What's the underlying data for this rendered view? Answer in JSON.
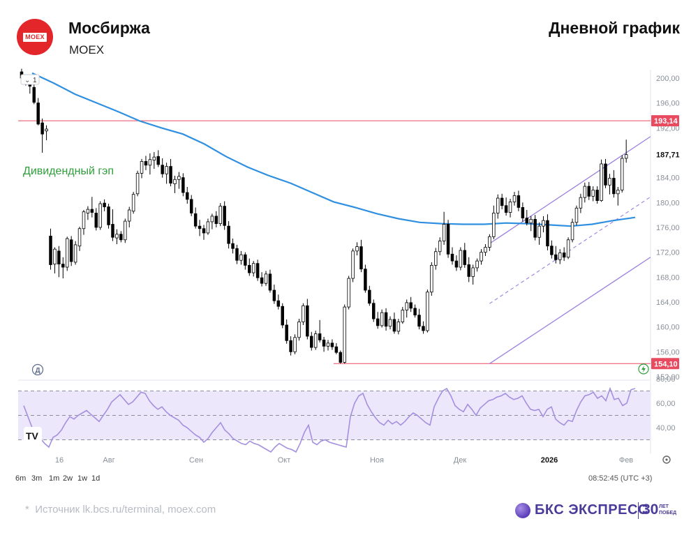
{
  "header": {
    "company": "Мосбиржа",
    "ticker": "MOEX",
    "chart_kind": "Дневной график",
    "logo_text": "MOEX"
  },
  "footer": {
    "source": "Источник lk.bcs.ru/terminal, moex.com",
    "brand": "БКС ЭКСПРЕСС",
    "brand_years": "30",
    "brand_years_line1": "ЛЕТ",
    "brand_years_line2": "ПОБЕД"
  },
  "toolbar": {
    "timeframes": [
      "6m",
      "3m",
      "1m",
      "2w",
      "1w",
      "1d"
    ],
    "clock": "08:52:45 (UTC +3)",
    "pane_badge": "1"
  },
  "colors": {
    "up": "#ffffff",
    "down": "#000000",
    "ma": "#2f8fe0",
    "channel": "#9b7fe0",
    "level": "#e84a5f",
    "rsi_line": "#a58fdf",
    "rsi_fill": "#ede7fb",
    "annotation": "#2e9e3a"
  },
  "chart_data": [
    {
      "type": "candlestick",
      "title": "Дневной график",
      "annotations": [
        {
          "text": "Дивидендный гэп",
          "color": "#2e9e3a"
        }
      ],
      "y_ticks": [
        "200,00",
        "196,00",
        "192,00",
        "187,71",
        "184,00",
        "180,00",
        "176,00",
        "172,00",
        "168,00",
        "164,00",
        "160,00",
        "156,00",
        "152,00"
      ],
      "ylim": [
        152,
        201
      ],
      "x_ticks": [
        "16",
        "Авг",
        "Сен",
        "Окт",
        "Ноя",
        "Дек",
        "2026",
        "Фев"
      ],
      "levels": [
        {
          "name": "resistance",
          "value": 193.14,
          "label": "193,14"
        },
        {
          "name": "support",
          "value": 154.1,
          "label": "154,10"
        }
      ],
      "last_price": {
        "value": 187.71,
        "label": "187,71"
      },
      "channel": {
        "start": {
          "index": 112,
          "value": 154.1
        },
        "end": {
          "index": 225,
          "value": 189.5
        },
        "upper_start_value": 173.4,
        "upper_end_value": 190.6,
        "lower_end_value": 171.2
      },
      "moving_average": [
        200.8,
        199.2,
        197.4,
        196.0,
        194.6,
        193.1,
        192.0,
        191.0,
        189.4,
        187.4,
        185.7,
        184.3,
        183.1,
        181.6,
        180.1,
        179.2,
        178.2,
        177.4,
        176.8,
        176.6,
        176.5,
        176.5,
        176.7,
        176.6,
        176.4,
        176.2,
        176.5,
        177.1,
        177.6
      ],
      "ohlc": [
        [
          201.0,
          201.5,
          199.5,
          200.0
        ],
        [
          200.2,
          200.5,
          198.8,
          199.2
        ],
        [
          199.0,
          199.6,
          197.5,
          198.7
        ],
        [
          198.5,
          199.2,
          195.8,
          196.1
        ],
        [
          196.0,
          196.8,
          192.4,
          192.6
        ],
        [
          192.8,
          193.5,
          188.0,
          191.0
        ],
        [
          191.5,
          192.4,
          190.0,
          191.8
        ],
        [
          174.6,
          175.8,
          169.2,
          170.0
        ],
        [
          170.1,
          172.8,
          168.6,
          172.5
        ],
        [
          172.2,
          173.0,
          168.0,
          170.1
        ],
        [
          170.1,
          171.2,
          167.8,
          169.6
        ],
        [
          169.6,
          174.5,
          169.0,
          174.2
        ],
        [
          174.0,
          174.6,
          169.8,
          170.5
        ],
        [
          170.4,
          173.8,
          170.0,
          173.2
        ],
        [
          173.0,
          176.1,
          172.2,
          175.8
        ],
        [
          175.8,
          178.8,
          174.8,
          178.5
        ],
        [
          178.3,
          179.4,
          177.2,
          178.9
        ],
        [
          178.9,
          180.9,
          177.6,
          178.4
        ],
        [
          178.3,
          179.1,
          175.5,
          176.0
        ],
        [
          176.0,
          180.2,
          175.6,
          179.8
        ],
        [
          179.9,
          180.5,
          178.6,
          179.3
        ],
        [
          179.3,
          179.8,
          175.8,
          176.4
        ],
        [
          176.5,
          178.9,
          173.8,
          174.4
        ],
        [
          174.3,
          175.7,
          173.3,
          174.9
        ],
        [
          174.9,
          175.4,
          173.6,
          174.0
        ],
        [
          174.0,
          177.4,
          173.5,
          177.0
        ],
        [
          177.0,
          179.3,
          176.0,
          178.8
        ],
        [
          178.6,
          181.7,
          178.2,
          181.3
        ],
        [
          181.4,
          185.1,
          181.0,
          184.7
        ],
        [
          184.7,
          187.0,
          183.9,
          186.6
        ],
        [
          186.6,
          187.5,
          185.2,
          186.0
        ],
        [
          186.0,
          187.9,
          184.5,
          186.9
        ],
        [
          186.8,
          188.1,
          185.4,
          187.3
        ],
        [
          187.4,
          188.4,
          185.7,
          186.1
        ],
        [
          186.0,
          187.1,
          184.0,
          184.6
        ],
        [
          184.6,
          186.4,
          183.0,
          185.8
        ],
        [
          185.8,
          187.0,
          182.6,
          183.1
        ],
        [
          183.0,
          184.3,
          181.5,
          183.7
        ],
        [
          183.7,
          184.9,
          182.2,
          184.2
        ],
        [
          184.0,
          184.7,
          181.0,
          181.6
        ],
        [
          181.6,
          182.5,
          179.8,
          180.5
        ],
        [
          180.5,
          181.2,
          177.8,
          178.3
        ],
        [
          178.2,
          179.2,
          175.8,
          176.2
        ],
        [
          176.2,
          177.2,
          174.6,
          175.8
        ],
        [
          175.8,
          176.4,
          174.0,
          175.1
        ],
        [
          175.1,
          177.4,
          174.8,
          176.9
        ],
        [
          176.9,
          178.2,
          175.7,
          177.8
        ],
        [
          177.8,
          178.6,
          176.0,
          176.6
        ],
        [
          176.6,
          179.9,
          176.2,
          179.4
        ],
        [
          179.4,
          180.2,
          175.6,
          176.3
        ],
        [
          176.2,
          177.0,
          172.6,
          173.4
        ],
        [
          173.4,
          174.2,
          171.8,
          172.6
        ],
        [
          172.6,
          173.2,
          170.1,
          170.7
        ],
        [
          170.7,
          172.2,
          170.0,
          171.6
        ],
        [
          171.6,
          172.0,
          169.2,
          169.9
        ],
        [
          169.9,
          171.0,
          168.2,
          168.7
        ],
        [
          168.7,
          170.6,
          168.1,
          170.2
        ],
        [
          170.2,
          170.8,
          167.4,
          167.9
        ],
        [
          167.9,
          168.8,
          166.5,
          167.0
        ],
        [
          167.0,
          169.0,
          166.6,
          168.5
        ],
        [
          168.5,
          169.2,
          165.5,
          165.9
        ],
        [
          165.9,
          166.8,
          163.7,
          164.2
        ],
        [
          164.2,
          165.2,
          162.8,
          163.3
        ],
        [
          163.3,
          163.8,
          159.8,
          160.3
        ],
        [
          160.3,
          161.2,
          157.3,
          157.8
        ],
        [
          157.8,
          158.5,
          155.4,
          156.0
        ],
        [
          156.0,
          158.8,
          155.6,
          158.3
        ],
        [
          158.3,
          161.3,
          157.8,
          160.8
        ],
        [
          160.8,
          163.8,
          160.3,
          163.4
        ],
        [
          163.4,
          164.5,
          158.0,
          158.5
        ],
        [
          158.5,
          159.2,
          156.2,
          156.7
        ],
        [
          156.7,
          159.4,
          156.3,
          158.9
        ],
        [
          158.9,
          161.1,
          157.5,
          157.9
        ],
        [
          157.9,
          158.4,
          156.0,
          156.9
        ],
        [
          156.9,
          157.9,
          156.2,
          157.4
        ],
        [
          157.4,
          158.0,
          156.3,
          156.8
        ],
        [
          156.8,
          157.4,
          155.6,
          155.9
        ],
        [
          155.9,
          156.2,
          154.1,
          154.3
        ],
        [
          154.3,
          163.6,
          154.1,
          163.2
        ],
        [
          163.2,
          168.2,
          162.8,
          167.8
        ],
        [
          167.8,
          172.6,
          167.2,
          172.2
        ],
        [
          172.2,
          173.6,
          171.5,
          172.9
        ],
        [
          172.9,
          174.0,
          168.8,
          169.3
        ],
        [
          169.3,
          170.0,
          165.5,
          165.9
        ],
        [
          165.9,
          166.6,
          163.4,
          163.8
        ],
        [
          163.8,
          164.4,
          160.8,
          161.3
        ],
        [
          161.3,
          162.4,
          159.7,
          160.2
        ],
        [
          160.2,
          162.8,
          159.9,
          162.3
        ],
        [
          162.3,
          163.0,
          159.4,
          160.1
        ],
        [
          160.1,
          161.7,
          159.6,
          161.2
        ],
        [
          161.2,
          162.3,
          158.9,
          159.3
        ],
        [
          159.3,
          161.3,
          158.8,
          160.8
        ],
        [
          160.8,
          163.2,
          160.5,
          162.7
        ],
        [
          162.7,
          164.4,
          161.5,
          163.9
        ],
        [
          163.9,
          164.8,
          162.4,
          163.0
        ],
        [
          163.0,
          163.6,
          161.5,
          161.9
        ],
        [
          161.9,
          162.9,
          159.6,
          160.1
        ],
        [
          160.1,
          160.9,
          158.9,
          159.4
        ],
        [
          159.4,
          166.0,
          159.1,
          165.6
        ],
        [
          165.6,
          170.4,
          165.0,
          169.9
        ],
        [
          169.9,
          172.7,
          169.2,
          172.1
        ],
        [
          172.1,
          174.4,
          171.5,
          173.8
        ],
        [
          173.8,
          178.5,
          173.2,
          176.5
        ],
        [
          176.5,
          177.2,
          171.1,
          171.7
        ],
        [
          171.7,
          172.8,
          170.0,
          170.6
        ],
        [
          170.6,
          171.5,
          169.0,
          169.6
        ],
        [
          169.6,
          172.8,
          169.1,
          172.3
        ],
        [
          172.3,
          173.5,
          169.5,
          170.0
        ],
        [
          170.0,
          171.2,
          167.2,
          168.1
        ],
        [
          168.1,
          170.0,
          166.8,
          169.5
        ],
        [
          169.5,
          171.0,
          168.9,
          170.6
        ],
        [
          170.6,
          172.5,
          170.0,
          172.0
        ],
        [
          172.0,
          173.3,
          171.4,
          172.8
        ],
        [
          172.8,
          174.9,
          172.2,
          174.5
        ],
        [
          174.5,
          179.5,
          174.1,
          178.3
        ],
        [
          178.3,
          181.3,
          177.4,
          180.7
        ],
        [
          180.7,
          181.4,
          178.9,
          179.5
        ],
        [
          179.5,
          180.8,
          177.9,
          178.4
        ],
        [
          178.4,
          180.6,
          177.6,
          180.1
        ],
        [
          180.1,
          181.7,
          179.5,
          181.1
        ],
        [
          181.1,
          181.9,
          178.6,
          179.2
        ],
        [
          179.2,
          180.0,
          176.9,
          177.5
        ],
        [
          177.5,
          178.8,
          176.3,
          176.7
        ],
        [
          176.7,
          177.8,
          175.4,
          177.3
        ],
        [
          177.3,
          178.0,
          173.9,
          174.4
        ],
        [
          174.4,
          176.8,
          173.2,
          176.2
        ],
        [
          176.2,
          177.8,
          175.2,
          177.1
        ],
        [
          177.1,
          178.1,
          172.3,
          173.0
        ],
        [
          173.0,
          173.9,
          171.0,
          171.6
        ],
        [
          171.6,
          173.0,
          170.2,
          170.8
        ],
        [
          170.8,
          172.5,
          170.1,
          171.9
        ],
        [
          171.9,
          172.8,
          170.6,
          171.2
        ],
        [
          171.2,
          174.4,
          170.9,
          174.0
        ],
        [
          174.0,
          177.4,
          173.6,
          176.8
        ],
        [
          176.8,
          179.5,
          176.3,
          179.1
        ],
        [
          179.1,
          181.4,
          178.3,
          180.8
        ],
        [
          180.8,
          183.2,
          180.0,
          182.6
        ],
        [
          182.6,
          183.3,
          180.4,
          181.0
        ],
        [
          181.0,
          182.6,
          180.2,
          182.0
        ],
        [
          182.0,
          182.6,
          179.8,
          180.3
        ],
        [
          180.3,
          186.9,
          180.1,
          186.2
        ],
        [
          186.2,
          187.0,
          182.3,
          182.8
        ],
        [
          182.8,
          184.6,
          181.3,
          183.9
        ],
        [
          183.9,
          185.2,
          180.8,
          181.4
        ],
        [
          181.4,
          182.5,
          179.5,
          182.0
        ],
        [
          182.0,
          187.6,
          181.6,
          187.1
        ],
        [
          187.1,
          190.1,
          186.4,
          187.7
        ]
      ],
      "ohlc_note_index_end": 225,
      "rsi": {
        "yticks": [
          "60,00",
          "40,00"
        ],
        "levels": [
          70,
          50,
          30
        ],
        "ylim": [
          20,
          80
        ],
        "values": [
          58,
          49,
          40,
          36,
          31,
          27,
          24,
          32,
          34,
          38,
          44,
          49,
          47,
          50,
          52,
          54,
          51,
          48,
          45,
          50,
          55,
          61,
          64,
          67,
          63,
          59,
          61,
          65,
          69,
          68,
          62,
          58,
          55,
          57,
          53,
          50,
          48,
          46,
          42,
          40,
          37,
          34,
          32,
          28,
          31,
          36,
          40,
          44,
          38,
          35,
          31,
          29,
          27,
          26,
          29,
          27,
          26,
          24,
          22,
          20,
          24,
          27,
          25,
          23,
          22,
          20,
          27,
          36,
          42,
          28,
          26,
          29,
          30,
          28,
          27,
          26,
          25,
          24,
          49,
          60,
          66,
          68,
          59,
          53,
          48,
          44,
          42,
          46,
          43,
          45,
          42,
          45,
          49,
          52,
          50,
          47,
          44,
          42,
          57,
          64,
          70,
          72,
          66,
          58,
          55,
          53,
          59,
          55,
          50,
          56,
          59,
          62,
          63,
          65,
          66,
          68,
          65,
          63,
          64,
          66,
          60,
          55,
          54,
          55,
          49,
          55,
          57,
          47,
          44,
          42,
          46,
          45,
          54,
          61,
          66,
          67,
          69,
          64,
          66,
          62,
          72,
          63,
          64,
          58,
          60,
          71,
          72
        ]
      }
    }
  ]
}
